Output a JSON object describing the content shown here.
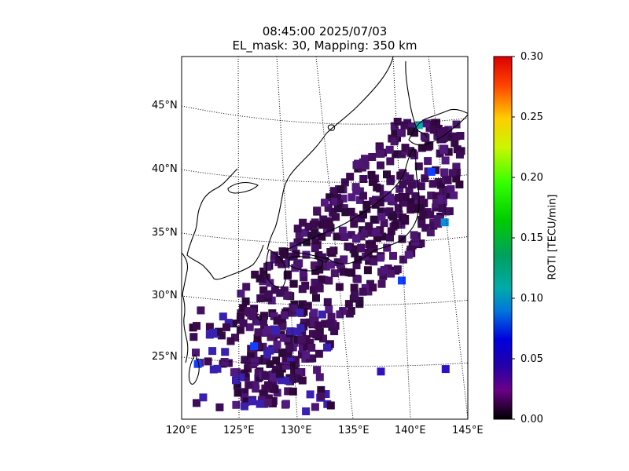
{
  "title": {
    "line1": "08:45:00 2025/07/03",
    "line2": "EL_mask: 30, Mapping: 350 km"
  },
  "axes": {
    "lon_ticks": [
      "120°E",
      "125°E",
      "130°E",
      "135°E",
      "140°E",
      "145°E"
    ],
    "lat_ticks": [
      "45°N",
      "40°N",
      "35°N",
      "30°N",
      "25°N"
    ],
    "lon_range": [
      120,
      145
    ],
    "lat_range": [
      20,
      49
    ]
  },
  "colorbar": {
    "label": "ROTI [TECU/min]",
    "ticks": [
      "0.30",
      "0.25",
      "0.20",
      "0.15",
      "0.10",
      "0.05",
      "0.00"
    ],
    "range": [
      0.0,
      0.3
    ],
    "colormap": "nipy_spectral"
  },
  "chart_data": {
    "type": "heatmap",
    "projection": "lambert-conic",
    "grid": true,
    "value_name": "ROTI",
    "points": [
      {
        "lon": 143.0,
        "lat": 43.3,
        "v": 0.11
      },
      {
        "lon": 143.6,
        "lat": 39.6,
        "v": 0.07
      },
      {
        "lon": 144.2,
        "lat": 35.6,
        "v": 0.08
      },
      {
        "lon": 139.6,
        "lat": 31.0,
        "v": 0.06
      },
      {
        "lon": 121.5,
        "lat": 24.4,
        "v": 0.07
      },
      {
        "lon": 126.3,
        "lat": 25.8,
        "v": 0.06
      },
      {
        "lon": 142.5,
        "lat": 24.0,
        "v": 0.04
      },
      {
        "lon": 137.0,
        "lat": 23.8,
        "v": 0.03
      }
    ]
  }
}
